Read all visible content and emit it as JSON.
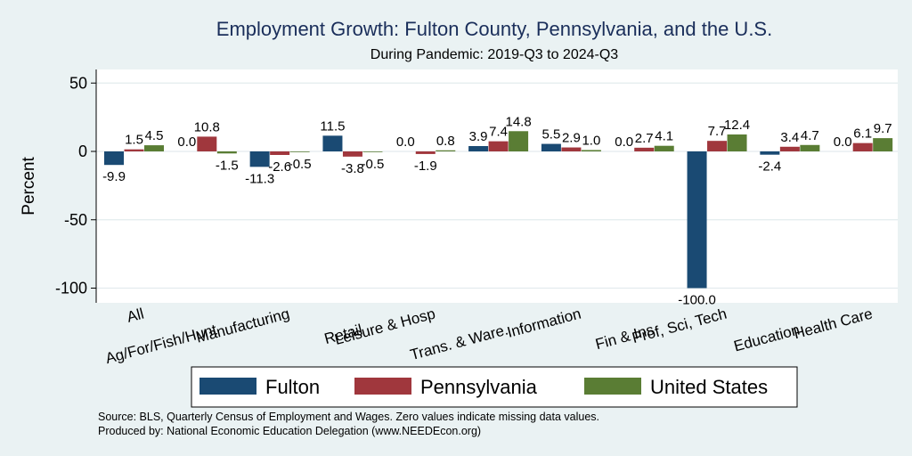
{
  "chart_data": {
    "type": "bar",
    "title": "Employment Growth: Fulton County, Pennsylvania, and the U.S.",
    "subtitle": "During Pandemic: 2019-Q3 to 2024-Q3",
    "xlabel": "",
    "ylabel": "Percent",
    "ylim": [
      -110,
      60
    ],
    "yticks": [
      50,
      0,
      -50,
      -100
    ],
    "grid": true,
    "legend_position": "bottom",
    "categories": [
      "All",
      "Ag/For/Fish/Hunt",
      "Manufacturing",
      "Retail",
      "Leisure & Hosp",
      "Trans. & Ware.",
      "Information",
      "Fin & Ins",
      "Prof, Sci, Tech",
      "Education",
      "Health Care"
    ],
    "series": [
      {
        "name": "Fulton",
        "color": "#1a4a73",
        "values": [
          -9.9,
          0.0,
          -11.3,
          11.5,
          0.0,
          3.9,
          5.5,
          0.0,
          -100.0,
          -2.4,
          0.0
        ]
      },
      {
        "name": "Pennsylvania",
        "color": "#a0373d",
        "values": [
          1.5,
          10.8,
          -2.6,
          -3.8,
          -1.9,
          7.4,
          2.9,
          2.7,
          7.7,
          3.4,
          6.1
        ]
      },
      {
        "name": "United States",
        "color": "#5a7d34",
        "values": [
          4.5,
          -1.5,
          -0.5,
          -0.5,
          0.8,
          14.8,
          1.0,
          4.1,
          12.4,
          4.7,
          9.7
        ]
      }
    ]
  },
  "footnotes": {
    "source": "Source: BLS, Quarterly Census of Employment and Wages. Zero values indicate missing data values.",
    "produced_by": "Produced by: National Economic Education Delegation (www.NEEDEcon.org)"
  }
}
